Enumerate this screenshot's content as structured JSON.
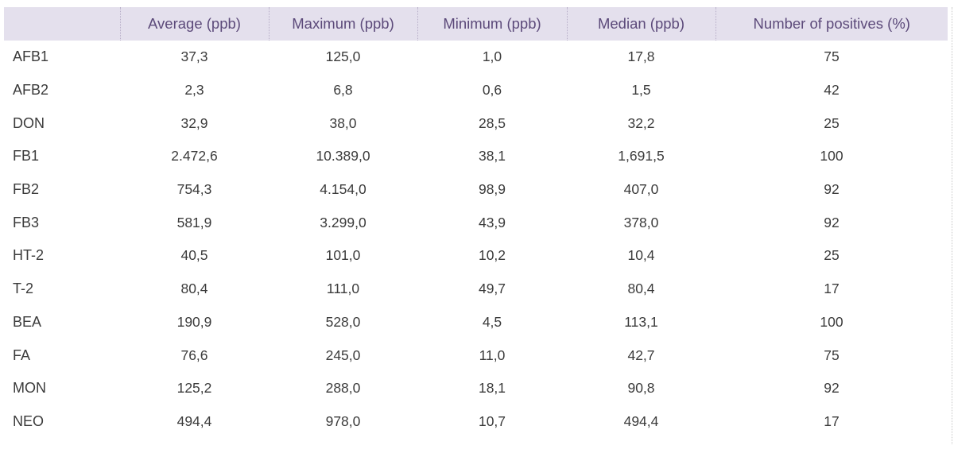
{
  "table": {
    "columns": [
      "",
      "Average (ppb)",
      "Maximum (ppb)",
      "Minimum (ppb)",
      "Median (ppb)",
      "Number of positives (%)"
    ],
    "rows": [
      [
        "AFB1",
        "37,3",
        "125,0",
        "1,0",
        "17,8",
        "75"
      ],
      [
        "AFB2",
        "2,3",
        "6,8",
        "0,6",
        "1,5",
        "42"
      ],
      [
        "DON",
        "32,9",
        "38,0",
        "28,5",
        "32,2",
        "25"
      ],
      [
        "FB1",
        "2.472,6",
        "10.389,0",
        "38,1",
        "1,691,5",
        "100"
      ],
      [
        "FB2",
        "754,3",
        "4.154,0",
        "98,9",
        "407,0",
        "92"
      ],
      [
        "FB3",
        "581,9",
        "3.299,0",
        "43,9",
        "378,0",
        "92"
      ],
      [
        "HT-2",
        "40,5",
        "101,0",
        "10,2",
        "10,4",
        "25"
      ],
      [
        "T-2",
        "80,4",
        "111,0",
        "49,7",
        "80,4",
        "17"
      ],
      [
        "BEA",
        "190,9",
        "528,0",
        "4,5",
        "113,1",
        "100"
      ],
      [
        "FA",
        "76,6",
        "245,0",
        "11,0",
        "42,7",
        "75"
      ],
      [
        "MON",
        "125,2",
        "288,0",
        "18,1",
        "90,8",
        "92"
      ],
      [
        "NEO",
        "494,4",
        "978,0",
        "10,7",
        "494,4",
        "17"
      ]
    ]
  },
  "colors": {
    "header_background": "#e4e0ed",
    "header_text": "#5c4a7a",
    "body_text": "#3b3b3b"
  }
}
